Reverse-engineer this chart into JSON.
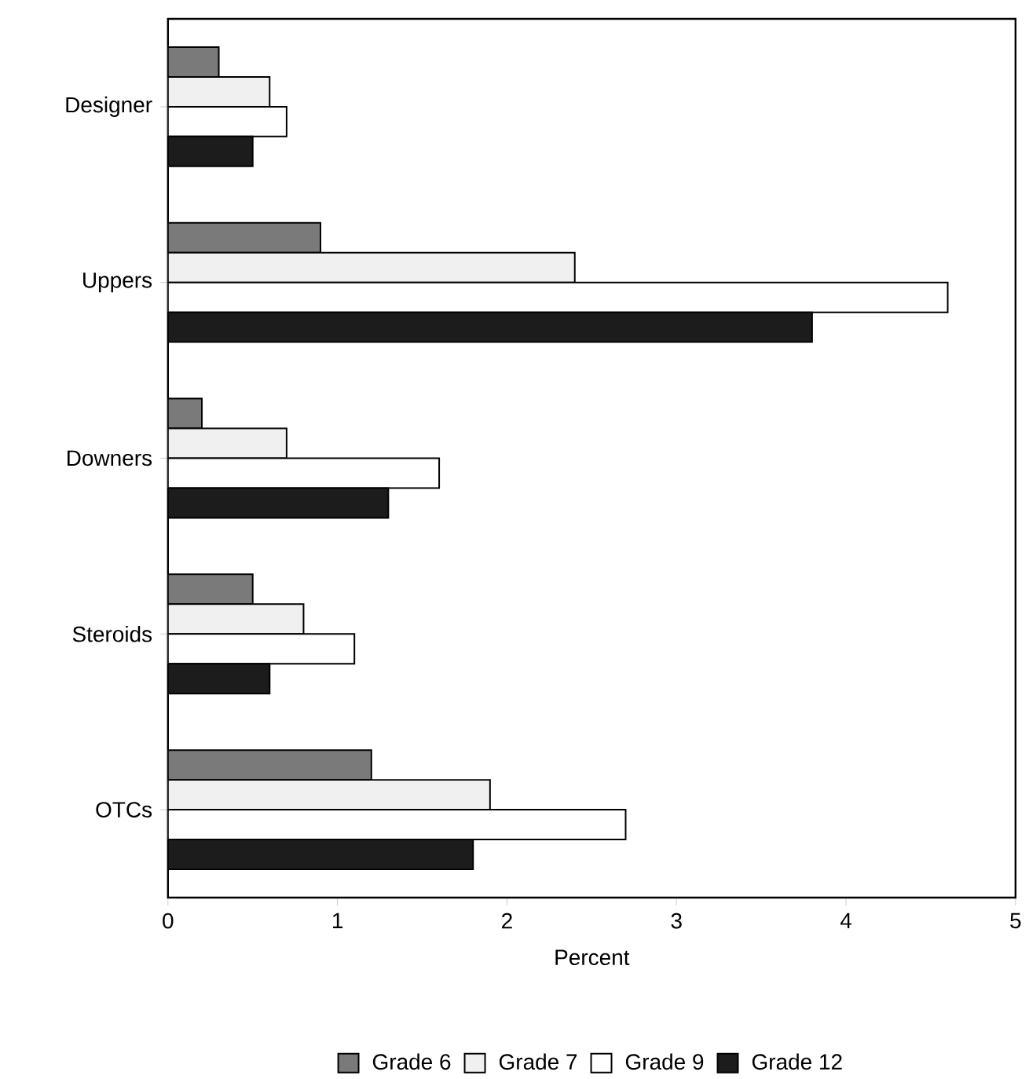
{
  "chart_data": {
    "type": "bar",
    "orientation": "horizontal",
    "xlabel": "Percent",
    "categories": [
      "Designer",
      "Uppers",
      "Downers",
      "Steroids",
      "OTCs"
    ],
    "series": [
      {
        "name": "Grade 6",
        "color": "#7a7a7a",
        "values": [
          0.3,
          0.9,
          0.2,
          0.5,
          1.2
        ]
      },
      {
        "name": "Grade 7",
        "color": "#f0f0f0",
        "values": [
          0.6,
          2.4,
          0.7,
          0.8,
          1.9
        ]
      },
      {
        "name": "Grade 9",
        "color": "#ffffff",
        "values": [
          0.7,
          4.6,
          1.6,
          1.1,
          2.7
        ]
      },
      {
        "name": "Grade 12",
        "color": "#1c1c1c",
        "values": [
          0.5,
          3.8,
          1.3,
          0.6,
          1.8
        ]
      }
    ],
    "xlim": [
      0,
      5
    ],
    "xticks": [
      0,
      1,
      2,
      3,
      4,
      5
    ],
    "grid": false,
    "legend": "bottom"
  }
}
